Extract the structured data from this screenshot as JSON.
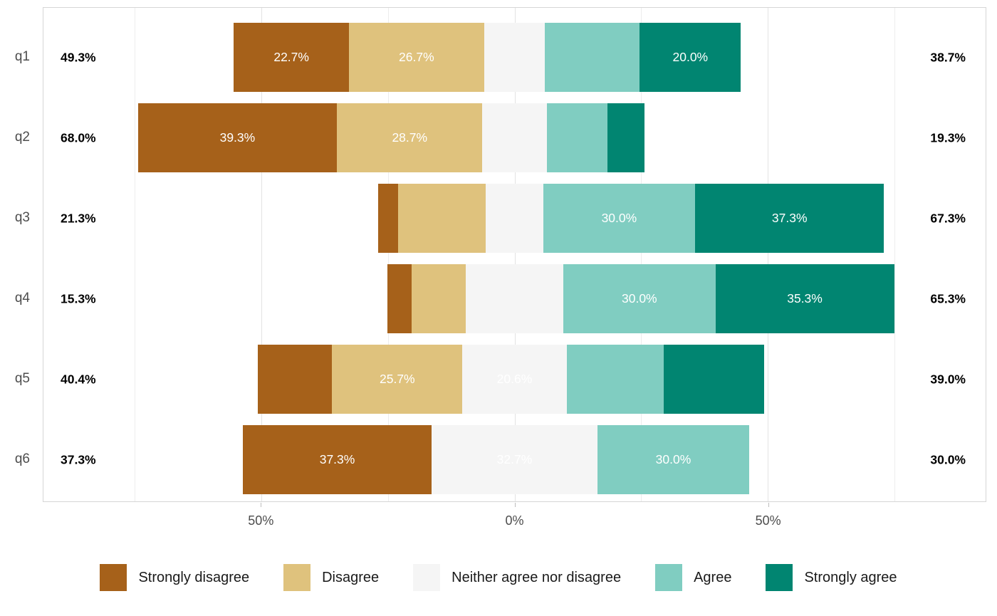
{
  "chart_data": {
    "type": "bar",
    "variant": "diverging-stacked-likert",
    "title": "",
    "categories": [
      "q1",
      "q2",
      "q3",
      "q4",
      "q5",
      "q6"
    ],
    "series": [
      {
        "name": "Strongly disagree",
        "color": "#a6611a",
        "values": [
          22.7,
          39.3,
          4.0,
          4.7,
          14.7,
          37.3
        ]
      },
      {
        "name": "Disagree",
        "color": "#dfc27d",
        "values": [
          26.7,
          28.7,
          17.3,
          10.7,
          25.7,
          0.0
        ]
      },
      {
        "name": "Neither agree nor disagree",
        "color": "#f5f5f5",
        "values": [
          12.0,
          12.7,
          11.3,
          19.3,
          20.6,
          32.7
        ]
      },
      {
        "name": "Agree",
        "color": "#80cdc1",
        "values": [
          18.7,
          12.0,
          30.0,
          30.0,
          19.1,
          30.0
        ]
      },
      {
        "name": "Strongly agree",
        "color": "#018571",
        "values": [
          20.0,
          7.3,
          37.3,
          35.3,
          19.9,
          0.0
        ]
      }
    ],
    "totals_left": [
      "49.3%",
      "68.0%",
      "21.3%",
      "15.3%",
      "40.4%",
      "37.3%"
    ],
    "totals_right": [
      "38.7%",
      "19.3%",
      "67.3%",
      "65.3%",
      "39.0%",
      "30.0%"
    ],
    "x_ticks": [
      {
        "value": -50,
        "label": "50%"
      },
      {
        "value": 0,
        "label": "0%"
      },
      {
        "value": 50,
        "label": "50%"
      }
    ],
    "x_range": [
      -93,
      93
    ],
    "gridlines_major": [
      -50,
      0,
      50
    ],
    "gridlines_minor": [
      -75,
      -25,
      25,
      75
    ],
    "grid": true,
    "label_threshold": 20,
    "label_color": "#ffffff",
    "legend": [
      "Strongly disagree",
      "Disagree",
      "Neither agree nor disagree",
      "Agree",
      "Strongly agree"
    ],
    "legend_position": "bottom",
    "neutral_centered": true
  }
}
